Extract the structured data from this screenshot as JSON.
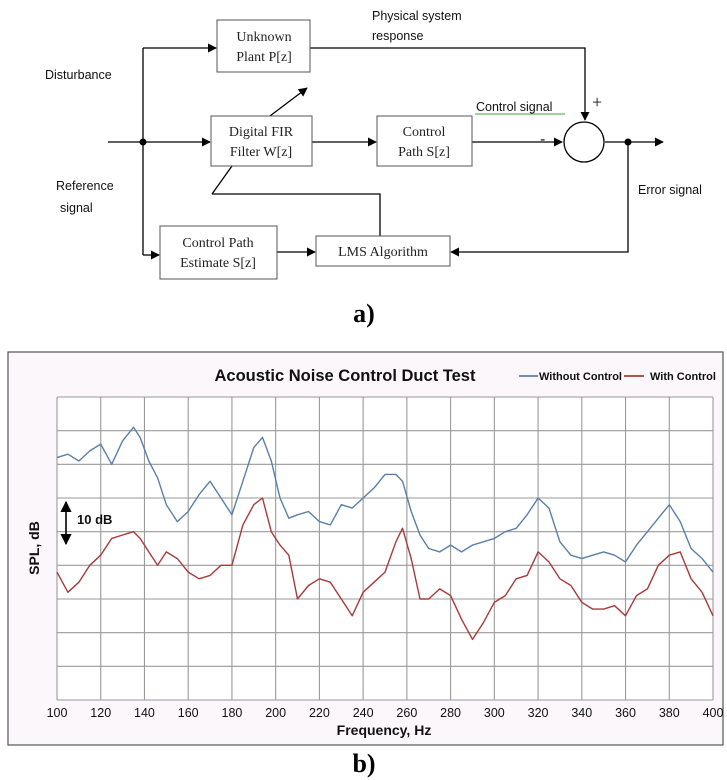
{
  "diagram": {
    "labels": {
      "disturbance": "Disturbance",
      "physical_response_line1": "Physical system",
      "physical_response_line2": "response",
      "control_signal": "Control signal",
      "plus_sign": "+",
      "minus_sign": "-",
      "reference_line1": "Reference",
      "reference_line2": "signal",
      "error_signal": "Error signal"
    },
    "blocks": {
      "plant_line1": "Unknown",
      "plant_line2": "Plant P[z]",
      "fir_line1": "Digital FIR",
      "fir_line2": "Filter W[z]",
      "control_path_line1": "Control",
      "control_path_line2": "Path S[z]",
      "estimate_line1": "Control Path",
      "estimate_line2": "Estimate S[z]",
      "lms": "LMS Algorithm"
    },
    "caption": "a)"
  },
  "chart_data": {
    "type": "line",
    "title": "Acoustic Noise Control Duct Test",
    "xlabel": "Frequency, Hz",
    "ylabel": "SPL, dB",
    "xlim": [
      100,
      400
    ],
    "x_ticks": [
      "100",
      "120",
      "140",
      "160",
      "180",
      "200",
      "220",
      "240",
      "260",
      "280",
      "300",
      "320",
      "340",
      "360",
      "380",
      "400"
    ],
    "scale_annotation": "10 dB",
    "grid": true,
    "legend_position": "top-right",
    "series": [
      {
        "name": "Without Control",
        "color": "#5a7fa8",
        "x": [
          100,
          105,
          110,
          115,
          120,
          125,
          130,
          135,
          138,
          142,
          146,
          150,
          155,
          160,
          165,
          170,
          175,
          180,
          185,
          190,
          194,
          198,
          202,
          206,
          210,
          215,
          220,
          225,
          230,
          235,
          240,
          245,
          250,
          255,
          258,
          262,
          266,
          270,
          275,
          280,
          285,
          290,
          295,
          300,
          305,
          310,
          315,
          320,
          325,
          330,
          335,
          340,
          345,
          350,
          355,
          360,
          365,
          370,
          375,
          380,
          385,
          390,
          395,
          400
        ],
        "y": [
          -8,
          -7,
          -9,
          -6,
          -4,
          -10,
          -3,
          1,
          -2,
          -9,
          -14,
          -22,
          -27,
          -24,
          -19,
          -15,
          -20,
          -25,
          -15,
          -5,
          -2,
          -9,
          -20,
          -26,
          -25,
          -24,
          -27,
          -28,
          -22,
          -23,
          -20,
          -17,
          -13,
          -13,
          -15,
          -24,
          -31,
          -35,
          -36,
          -34,
          -36,
          -34,
          -33,
          -32,
          -30,
          -29,
          -25,
          -20,
          -23,
          -33,
          -37,
          -38,
          -37,
          -36,
          -37,
          -39,
          -34,
          -30,
          -26,
          -22,
          -27,
          -35,
          -38,
          -42
        ]
      },
      {
        "name": "With Control",
        "color": "#a83a3a",
        "x": [
          100,
          105,
          110,
          115,
          120,
          125,
          130,
          135,
          138,
          142,
          146,
          150,
          155,
          160,
          165,
          170,
          175,
          180,
          185,
          190,
          194,
          198,
          202,
          206,
          210,
          215,
          220,
          225,
          230,
          235,
          240,
          245,
          250,
          255,
          258,
          262,
          266,
          270,
          275,
          280,
          285,
          290,
          295,
          300,
          305,
          310,
          315,
          320,
          325,
          330,
          335,
          340,
          345,
          350,
          355,
          360,
          365,
          370,
          375,
          380,
          385,
          390,
          395,
          400
        ],
        "y": [
          -42,
          -48,
          -45,
          -40,
          -37,
          -32,
          -31,
          -30,
          -32,
          -36,
          -40,
          -36,
          -38,
          -42,
          -44,
          -43,
          -40,
          -40,
          -28,
          -22,
          -20,
          -30,
          -34,
          -37,
          -50,
          -46,
          -44,
          -45,
          -50,
          -55,
          -48,
          -45,
          -42,
          -33,
          -29,
          -38,
          -50,
          -50,
          -47,
          -49,
          -56,
          -62,
          -57,
          -51,
          -49,
          -44,
          -43,
          -36,
          -39,
          -44,
          -46,
          -51,
          -53,
          -53,
          -52,
          -55,
          -49,
          -47,
          -40,
          -37,
          -36,
          -44,
          -48,
          -55
        ]
      }
    ],
    "caption": "b)"
  }
}
